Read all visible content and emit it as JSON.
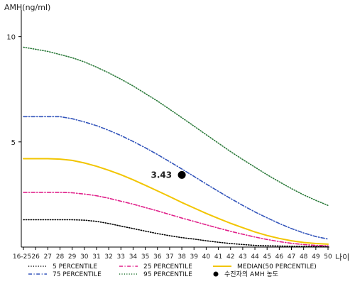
{
  "chart_data": {
    "type": "line",
    "ylabel": "AMH(ng/ml)",
    "xlabel": "나이",
    "ylim": [
      0,
      11
    ],
    "y_ticks": [
      5,
      10
    ],
    "grid": false,
    "categories": [
      "16-25",
      "26",
      "27",
      "28",
      "29",
      "30",
      "31",
      "32",
      "33",
      "34",
      "35",
      "36",
      "37",
      "38",
      "39",
      "40",
      "41",
      "42",
      "43",
      "44",
      "45",
      "46",
      "47",
      "48",
      "49",
      "50"
    ],
    "series": [
      {
        "name": "5 PERCENTILE",
        "style": "dotted",
        "color": "#000000",
        "values": [
          1.3,
          1.3,
          1.3,
          1.3,
          1.3,
          1.28,
          1.22,
          1.12,
          1.0,
          0.88,
          0.76,
          0.64,
          0.54,
          0.45,
          0.38,
          0.3,
          0.23,
          0.17,
          0.12,
          0.08,
          0.06,
          0.05,
          0.04,
          0.03,
          0.03,
          0.02
        ]
      },
      {
        "name": "25 PERCENTILE",
        "style": "dashdot",
        "color": "#e0208a",
        "values": [
          2.6,
          2.6,
          2.6,
          2.6,
          2.58,
          2.52,
          2.44,
          2.32,
          2.18,
          2.04,
          1.88,
          1.72,
          1.55,
          1.38,
          1.22,
          1.06,
          0.9,
          0.75,
          0.61,
          0.48,
          0.36,
          0.26,
          0.18,
          0.12,
          0.08,
          0.06
        ]
      },
      {
        "name": "MEDIAN(50 PERCENTILE)",
        "style": "solid",
        "color": "#f2c500",
        "values": [
          4.2,
          4.2,
          4.2,
          4.18,
          4.12,
          4.0,
          3.84,
          3.65,
          3.44,
          3.2,
          2.94,
          2.67,
          2.4,
          2.12,
          1.86,
          1.6,
          1.36,
          1.13,
          0.92,
          0.72,
          0.55,
          0.41,
          0.3,
          0.22,
          0.17,
          0.14
        ]
      },
      {
        "name": "75 PERCENTILE",
        "style": "dashdot",
        "color": "#3355bb",
        "values": [
          6.2,
          6.2,
          6.2,
          6.2,
          6.1,
          5.95,
          5.77,
          5.55,
          5.3,
          5.02,
          4.72,
          4.4,
          4.06,
          3.71,
          3.36,
          3.0,
          2.65,
          2.31,
          1.98,
          1.67,
          1.39,
          1.12,
          0.88,
          0.67,
          0.5,
          0.38
        ]
      },
      {
        "name": "95 PERCENTILE",
        "style": "dotted",
        "color": "#2b7a3a",
        "values": [
          9.5,
          9.4,
          9.3,
          9.15,
          9.0,
          8.8,
          8.55,
          8.28,
          7.98,
          7.66,
          7.3,
          6.94,
          6.55,
          6.15,
          5.75,
          5.34,
          4.94,
          4.54,
          4.16,
          3.8,
          3.44,
          3.1,
          2.78,
          2.48,
          2.22,
          1.98
        ]
      }
    ],
    "marker": {
      "label": "수진자의 AMH 농도",
      "x": "38",
      "y": 3.43,
      "value_label": "3.43",
      "color": "#000000"
    },
    "legend": {
      "placement": "bottom",
      "order": [
        "5 PERCENTILE",
        "25 PERCENTILE",
        "MEDIAN(50 PERCENTILE)",
        "75 PERCENTILE",
        "95 PERCENTILE",
        "수진자의 AMH 농도"
      ]
    }
  }
}
